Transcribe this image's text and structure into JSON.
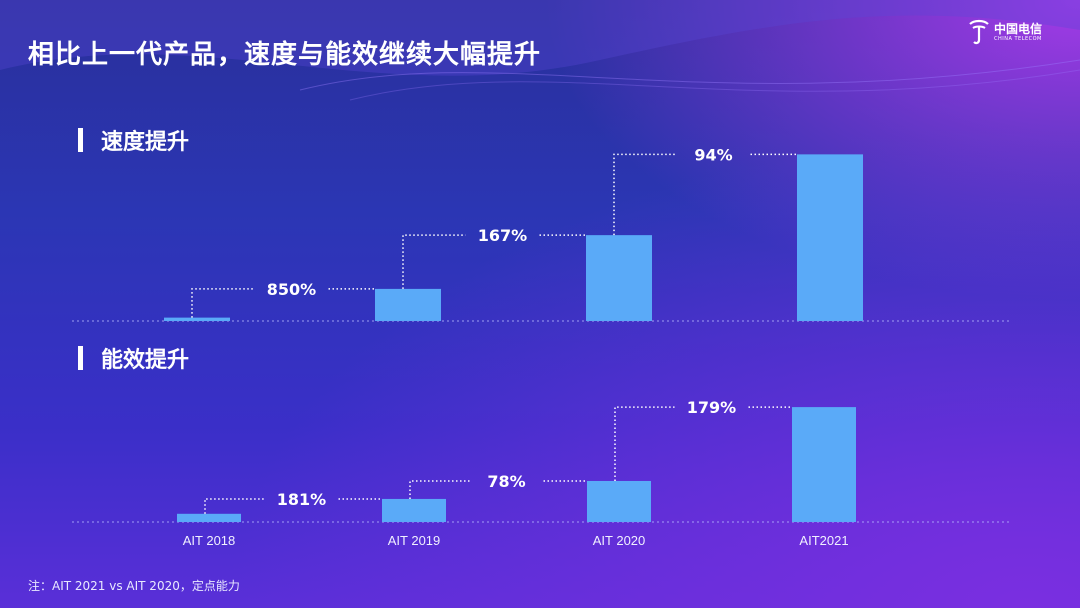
{
  "slide": {
    "title": "相比上一代产品，速度与能效继续大幅提升",
    "footnote": "注：AIT 2021 vs AIT 2020，定点能力",
    "logo_text": "中国电信",
    "logo_sub": "CHINA TELECOM"
  },
  "sections": [
    {
      "label": "速度提升"
    },
    {
      "label": "能效提升"
    }
  ],
  "colors": {
    "bar": "#5aaaf8",
    "guide": "#ffffff",
    "baseline": "#b8b8ff"
  },
  "chart_data": [
    {
      "type": "bar",
      "title": "速度提升",
      "categories": [
        "AIT 2018",
        "AIT 2019",
        "AIT 2020",
        "AIT2021"
      ],
      "values": [
        1,
        9.5,
        25.4,
        49.3
      ],
      "annotations": [
        "850%",
        "167%",
        "94%"
      ],
      "ylim": [
        0,
        50
      ]
    },
    {
      "type": "bar",
      "title": "能效提升",
      "categories": [
        "AIT 2018",
        "AIT 2019",
        "AIT 2020",
        "AIT2021"
      ],
      "values": [
        1,
        2.81,
        5.0,
        14.0
      ],
      "annotations": [
        "181%",
        "78%",
        "179%"
      ],
      "ylim": [
        0,
        14.5
      ]
    }
  ]
}
